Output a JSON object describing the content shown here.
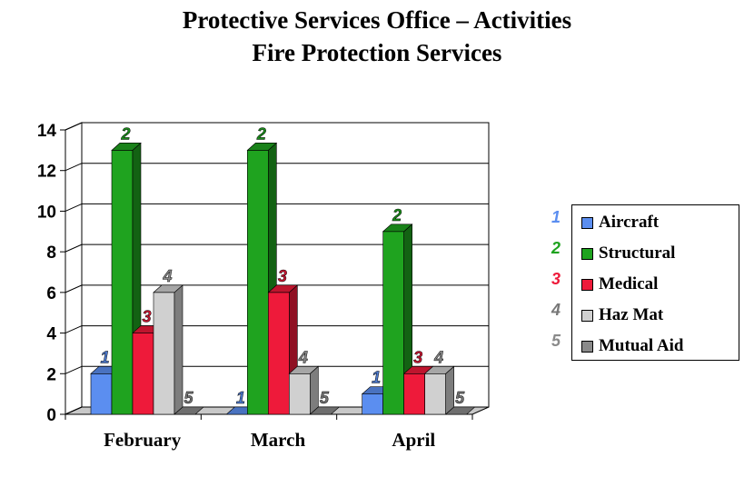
{
  "title": "Protective Services Office – Activities",
  "subtitle": "Fire Protection Services",
  "chart_data": {
    "type": "bar",
    "categories": [
      "February",
      "March",
      "April"
    ],
    "series": [
      {
        "name": "Aircraft",
        "key": "1",
        "color": "#5b8ef0",
        "values": [
          2,
          0,
          1
        ]
      },
      {
        "name": "Structural",
        "key": "2",
        "color": "#1fa31f",
        "values": [
          13,
          13,
          9
        ]
      },
      {
        "name": "Medical",
        "key": "3",
        "color": "#ee1a3a",
        "values": [
          4,
          6,
          2
        ]
      },
      {
        "name": "Haz Mat",
        "key": "4",
        "color": "#d0d0d0",
        "values": [
          6,
          2,
          2
        ]
      },
      {
        "name": "Mutual Aid",
        "key": "5",
        "color": "#8a8a8a",
        "values": [
          0,
          0,
          0
        ]
      }
    ],
    "yticks": [
      "0",
      "2",
      "4",
      "6",
      "8",
      "10",
      "12",
      "14"
    ],
    "ylim": [
      0,
      14
    ],
    "grid": true,
    "legend_position": "right"
  }
}
